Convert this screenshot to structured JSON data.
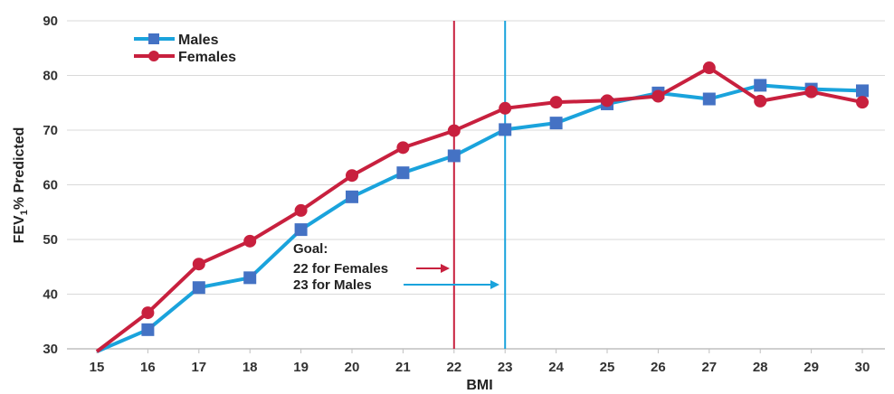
{
  "chart_data": {
    "type": "line",
    "title": "",
    "xlabel": "BMI",
    "ylabel": "FEV",
    "ylabel_sub": "1",
    "ylabel_rest": "% Predicted",
    "x": [
      15,
      16,
      17,
      18,
      19,
      20,
      21,
      22,
      23,
      24,
      25,
      26,
      27,
      28,
      29,
      30
    ],
    "xlim": [
      15,
      30
    ],
    "ylim": [
      30,
      90
    ],
    "yticks": [
      30,
      40,
      50,
      60,
      70,
      80,
      90
    ],
    "grid": "horizontal",
    "legend_position": "top-left",
    "series": [
      {
        "name": "Males",
        "color": "#1aa3dc",
        "marker": "square",
        "marker_color": "#4472c4",
        "values": [
          29.5,
          33.5,
          41.2,
          43,
          51.8,
          57.8,
          62.2,
          65.3,
          70.1,
          71.3,
          74.8,
          76.8,
          75.7,
          78.2,
          77.5,
          77.2
        ]
      },
      {
        "name": "Females",
        "color": "#c8203e",
        "marker": "circle",
        "marker_color": "#c8203e",
        "values": [
          29.5,
          36.6,
          45.5,
          49.7,
          55.3,
          61.7,
          66.8,
          69.9,
          74,
          75.1,
          75.4,
          76.2,
          81.4,
          75.3,
          77,
          75.1
        ]
      }
    ],
    "reference_lines": [
      {
        "x": 22,
        "color": "#c8203e"
      },
      {
        "x": 23,
        "color": "#1aa3dc"
      }
    ],
    "annotation": {
      "heading": "Goal:",
      "lines": [
        {
          "text": "22 for Females",
          "color": "#c8203e"
        },
        {
          "text": "23 for Males",
          "color": "#1aa3dc"
        }
      ]
    }
  }
}
